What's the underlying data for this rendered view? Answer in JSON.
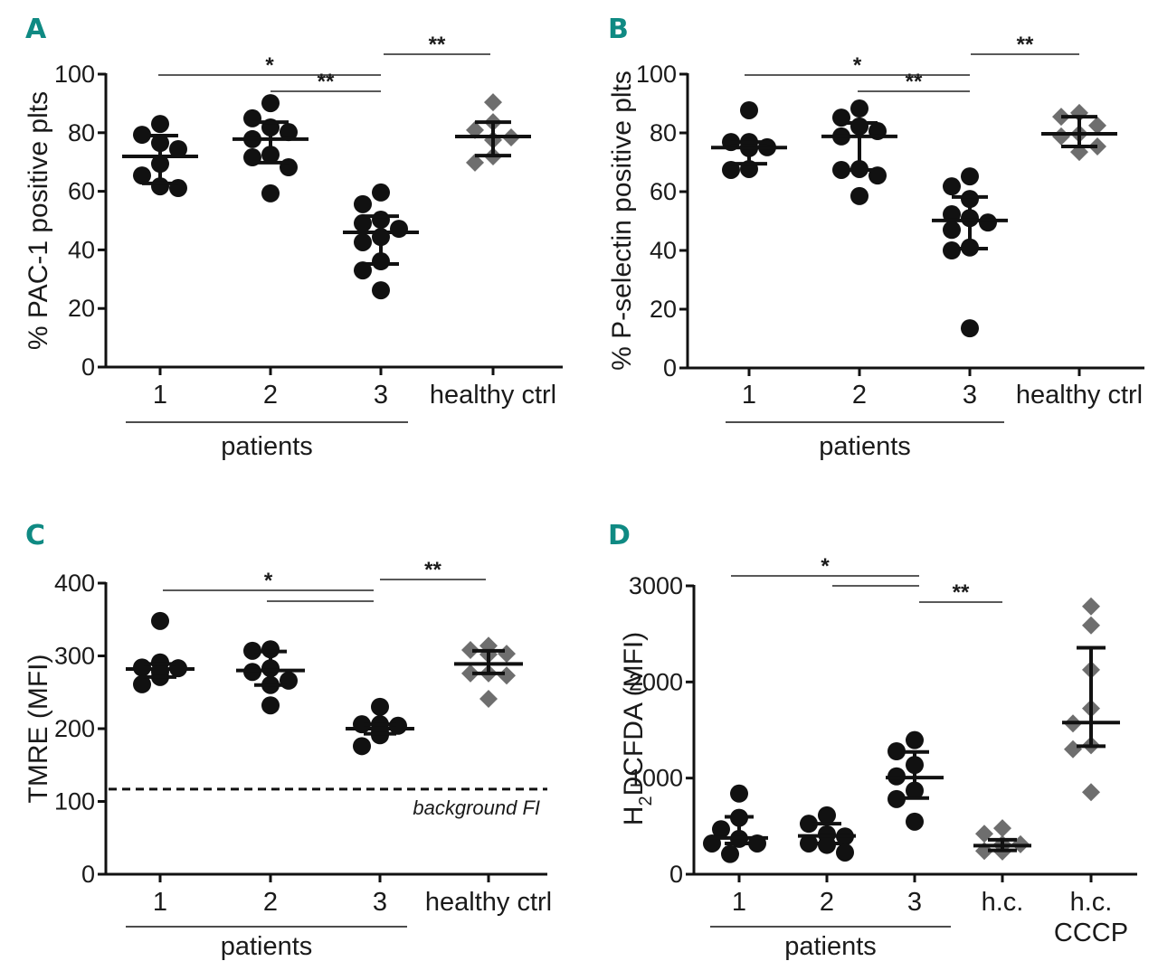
{
  "figure": {
    "colors": {
      "panel_letter": "#0f8a83",
      "patient_point": "#111111",
      "control_point": "#6e6e6e",
      "line": "#111111"
    }
  },
  "chart_data": [
    {
      "panel": "A",
      "type": "scatter",
      "title": "",
      "ylabel": "% PAC-1 positive plts",
      "xlabel": "",
      "ylim": [
        0,
        100
      ],
      "yticks": [
        0,
        20,
        40,
        60,
        80,
        100
      ],
      "ytick_labels": [
        "0",
        "20",
        "40",
        "60",
        "80",
        "100"
      ],
      "categories": [
        "1",
        "2",
        "3",
        "healthy ctrl"
      ],
      "group_label": {
        "text": "patients",
        "spans": [
          "1",
          "2",
          "3"
        ]
      },
      "groups": [
        {
          "name": "1",
          "marker": "circle",
          "values": [
            83,
            79.3,
            76.5,
            74.4,
            69.4,
            65.4,
            61.1,
            61.7
          ],
          "mean": 71.9,
          "err_low": 62.7,
          "err_high": 79
        },
        {
          "name": "2",
          "marker": "circle",
          "values": [
            90.1,
            84.9,
            81.8,
            80.2,
            77.8,
            71.6,
            72.5,
            68.2,
            59.3
          ],
          "mean": 77.8,
          "err_low": 69.8,
          "err_high": 83.6
        },
        {
          "name": "3",
          "marker": "circle",
          "values": [
            59.6,
            55.6,
            50.3,
            49.1,
            47.2,
            44.4,
            42.6,
            36.1,
            33,
            26.2
          ],
          "mean": 46,
          "err_low": 35.2,
          "err_high": 51.5
        },
        {
          "name": "healthy ctrl",
          "marker": "diamond",
          "values": [
            90.4,
            83.6,
            80.9,
            78.4,
            77.5,
            71.9,
            69.8
          ],
          "mean": 78.7,
          "err_low": 72.2,
          "err_high": 83.6
        }
      ],
      "significance": [
        {
          "from": "1",
          "to": "3",
          "label": "*",
          "level": 1
        },
        {
          "from": "2",
          "to": "3",
          "label": "**",
          "level": 0
        },
        {
          "from": "3",
          "to": "healthy ctrl",
          "label": "**",
          "level": 2
        }
      ]
    },
    {
      "panel": "B",
      "type": "scatter",
      "title": "",
      "ylabel": "% P-selectin positive plts",
      "xlabel": "",
      "ylim": [
        0,
        100
      ],
      "yticks": [
        0,
        20,
        40,
        60,
        80,
        100
      ],
      "ytick_labels": [
        "0",
        "20",
        "40",
        "60",
        "80",
        "100"
      ],
      "categories": [
        "1",
        "2",
        "3",
        "healthy ctrl"
      ],
      "group_label": {
        "text": "patients",
        "spans": [
          "1",
          "2",
          "3"
        ]
      },
      "groups": [
        {
          "name": "1",
          "marker": "circle",
          "values": [
            87.7,
            76.9,
            76.9,
            75.1,
            74.8,
            75.1,
            67.4,
            67.7
          ],
          "mean": 75,
          "err_low": 69.5,
          "err_high": 76.9
        },
        {
          "name": "2",
          "marker": "circle",
          "values": [
            88.3,
            85.2,
            82.2,
            80.6,
            78.8,
            67.4,
            67.7,
            65.5,
            58.5
          ],
          "mean": 78.8,
          "err_low": 67.4,
          "err_high": 83.4
        },
        {
          "name": "3",
          "marker": "circle",
          "values": [
            65.2,
            61.8,
            57.5,
            51,
            52.3,
            49.5,
            47,
            41,
            40,
            13.5
          ],
          "mean": 50.2,
          "err_low": 40.6,
          "err_high": 58.2
        },
        {
          "name": "healthy ctrl",
          "marker": "diamond",
          "values": [
            86.8,
            85.5,
            82.5,
            78.8,
            79.7,
            75.4,
            73.5
          ],
          "mean": 79.7,
          "err_low": 75.4,
          "err_high": 85.5
        }
      ],
      "significance": [
        {
          "from": "1",
          "to": "3",
          "label": "*",
          "level": 1
        },
        {
          "from": "2",
          "to": "3",
          "label": "**",
          "level": 0
        },
        {
          "from": "3",
          "to": "healthy ctrl",
          "label": "**",
          "level": 2
        }
      ]
    },
    {
      "panel": "C",
      "type": "scatter",
      "title": "",
      "ylabel": "TMRE (MFI)",
      "xlabel": "",
      "ylim": [
        0,
        400
      ],
      "yticks": [
        0,
        100,
        200,
        300,
        400
      ],
      "ytick_labels": [
        "0",
        "100",
        "200",
        "300",
        "400"
      ],
      "categories": [
        "1",
        "2",
        "3",
        "healthy ctrl"
      ],
      "group_label": {
        "text": "patients",
        "spans": [
          "1",
          "2",
          "3"
        ]
      },
      "reference_line": {
        "value": 117,
        "label": "background FI",
        "style": "dashed"
      },
      "groups": [
        {
          "name": "1",
          "marker": "circle",
          "values": [
            348,
            284,
            283,
            291,
            278,
            271,
            261
          ],
          "mean": 282,
          "err_low": 271,
          "err_high": 289
        },
        {
          "name": "2",
          "marker": "circle",
          "values": [
            307,
            309,
            283,
            278,
            266,
            260,
            232
          ],
          "mean": 280,
          "err_low": 260,
          "err_high": 306
        },
        {
          "name": "3",
          "marker": "circle",
          "values": [
            230,
            206,
            206,
            204,
            195,
            191,
            176
          ],
          "mean": 200,
          "err_low": 193,
          "err_high": 206
        },
        {
          "name": "healthy ctrl",
          "marker": "diamond",
          "values": [
            308,
            314,
            302,
            303,
            276,
            273,
            276,
            241
          ],
          "mean": 289,
          "err_low": 276,
          "err_high": 307
        }
      ],
      "significance": [
        {
          "from": "1",
          "to": "3",
          "label": "*",
          "level": 1
        },
        {
          "from": "2",
          "to": "3",
          "label": "",
          "level": 0
        },
        {
          "from": "3",
          "to": "healthy ctrl",
          "label": "**",
          "level": 2
        }
      ]
    },
    {
      "panel": "D",
      "type": "scatter",
      "title": "",
      "ylabel": "H2DCFDA (MFI)",
      "ylabel_main": "H",
      "ylabel_sub": "2",
      "ylabel_rest": "DCFDA (MFI)",
      "xlabel": "",
      "ylim": [
        0,
        3000
      ],
      "yticks": [
        0,
        1000,
        2000,
        3000
      ],
      "ytick_labels": [
        "0",
        "1000",
        "2000",
        "3000"
      ],
      "categories": [
        "1",
        "2",
        "3",
        "h.c.",
        "h.c. CCCP"
      ],
      "category_lines": [
        [
          "1"
        ],
        [
          "2"
        ],
        [
          "3"
        ],
        [
          "h.c."
        ],
        [
          "h.c.",
          "CCCP"
        ]
      ],
      "group_label": {
        "text": "patients",
        "spans": [
          "1",
          "2",
          "3"
        ]
      },
      "groups": [
        {
          "name": "1",
          "marker": "circle",
          "values": [
            839,
            587,
            468,
            368,
            320,
            320,
            210
          ],
          "mean": 377,
          "err_low": 320,
          "err_high": 597
        },
        {
          "name": "2",
          "marker": "circle",
          "values": [
            613,
            525,
            415,
            393,
            320,
            305,
            226
          ],
          "mean": 399,
          "err_low": 320,
          "err_high": 525
        },
        {
          "name": "3",
          "marker": "circle",
          "values": [
            1395,
            1279,
            1137,
            1018,
            870,
            782,
            547
          ],
          "mean": 1005,
          "err_low": 792,
          "err_high": 1272
        },
        {
          "name": "h.c.",
          "marker": "diamond",
          "values": [
            478,
            421,
            311,
            242,
            236,
            311,
            298
          ],
          "mean": 298,
          "err_low": 248,
          "err_high": 358
        },
        {
          "name": "h.c. CCCP",
          "marker": "diamond",
          "values": [
            2786,
            2588,
            2127,
            1725,
            1568,
            1341,
            1300,
            854
          ],
          "mean": 1577,
          "err_low": 1332,
          "err_high": 2356
        }
      ],
      "significance": [
        {
          "from": "1",
          "to": "3",
          "label": "*",
          "level": 1
        },
        {
          "from": "2",
          "to": "3",
          "label": "",
          "level": 0
        },
        {
          "from": "3",
          "to": "h.c.",
          "label": "**",
          "level": -1
        }
      ]
    }
  ]
}
